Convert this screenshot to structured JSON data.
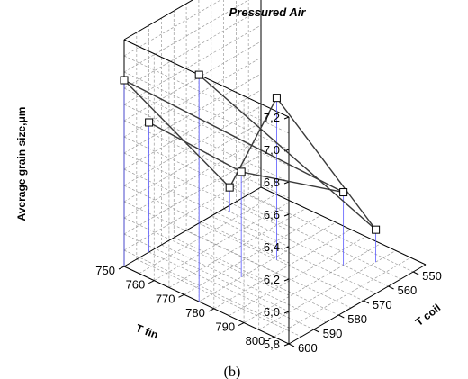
{
  "chart_data": {
    "type": "scatter3d",
    "title": "Pressured Air",
    "xlabel": "T fin",
    "ylabel": "T coil",
    "zlabel": "Average grain size,μm",
    "caption": "(b)",
    "xlim": [
      750,
      805
    ],
    "ylim": [
      545,
      600
    ],
    "zlim": [
      5.8,
      7.2
    ],
    "xticks": [
      "750",
      "760",
      "770",
      "780",
      "790",
      "800"
    ],
    "yticks": [
      "550",
      "560",
      "570",
      "580",
      "590",
      "600"
    ],
    "zticks": [
      "5,8",
      "6,0",
      "6,2",
      "6,4",
      "6,6",
      "6,8",
      "7,0",
      "7,2"
    ],
    "grid": true,
    "points": [
      {
        "x": 750,
        "y": 590,
        "z": 6.6
      },
      {
        "x": 775,
        "y": 583,
        "z": 6.45
      },
      {
        "x": 790,
        "y": 560,
        "z": 6.25
      },
      {
        "x": 752,
        "y": 560,
        "z": 5.95
      },
      {
        "x": 776,
        "y": 570,
        "z": 6.8
      },
      {
        "x": 795,
        "y": 553,
        "z": 6.0
      },
      {
        "x": 775,
        "y": 600,
        "z": 7.2
      },
      {
        "x": 750,
        "y": 600,
        "z": 6.95
      }
    ],
    "segments": [
      [
        0,
        1
      ],
      [
        1,
        2
      ],
      [
        2,
        7
      ],
      [
        7,
        3
      ],
      [
        3,
        4
      ],
      [
        4,
        5
      ],
      [
        5,
        6
      ]
    ]
  }
}
